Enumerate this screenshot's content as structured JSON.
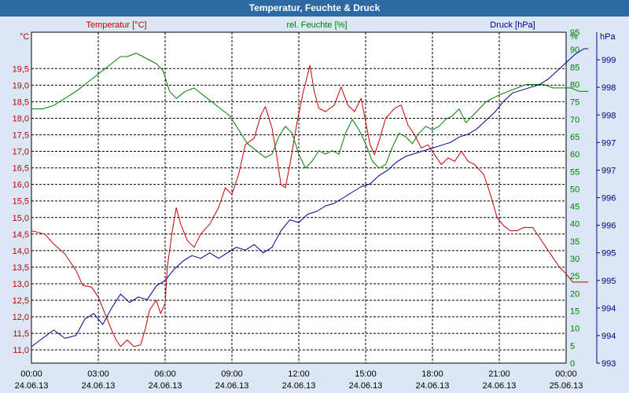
{
  "window_title": "Temperatur, Feuchte & Druck",
  "chart_data": {
    "type": "line",
    "title": "Temperatur, Feuchte & Druck",
    "x_ticks": [
      {
        "time": "00:00",
        "date": "24.06.13"
      },
      {
        "time": "03:00",
        "date": "24.06.13"
      },
      {
        "time": "06:00",
        "date": "24.06.13"
      },
      {
        "time": "09:00",
        "date": "24.06.13"
      },
      {
        "time": "12:00",
        "date": "24.06.13"
      },
      {
        "time": "15:00",
        "date": "24.06.13"
      },
      {
        "time": "18:00",
        "date": "24.06.13"
      },
      {
        "time": "21:00",
        "date": "24.06.13"
      },
      {
        "time": "00:00",
        "date": "25.06.13"
      }
    ],
    "xlim": [
      0,
      24
    ],
    "grid": true,
    "axes": {
      "temperature": {
        "label": "Temperatur [°C]",
        "unit": "°C",
        "color": "#c00000",
        "side": "left",
        "ylim": [
          10.6,
          20.6
        ],
        "ticks": [
          "11,0",
          "11,5",
          "12,0",
          "12,5",
          "13,0",
          "13,5",
          "14,0",
          "14,5",
          "15,0",
          "15,5",
          "16,0",
          "16,5",
          "17,0",
          "17,5",
          "18,0",
          "18,5",
          "19,0",
          "19,5"
        ]
      },
      "humidity": {
        "label": "rel. Feuchte [%]",
        "unit": "%",
        "color": "#008000",
        "side": "right",
        "ylim": [
          0,
          95
        ],
        "ticks": [
          "0",
          "5",
          "10",
          "15",
          "20",
          "25",
          "30",
          "35",
          "40",
          "45",
          "50",
          "55",
          "60",
          "65",
          "70",
          "75",
          "80",
          "85",
          "90",
          "95"
        ]
      },
      "pressure": {
        "label": "Druck [hPa]",
        "unit": "hPa",
        "color": "#00008b",
        "side": "right",
        "ylim": [
          993,
          999
        ],
        "ticks": [
          "993",
          "994",
          "994",
          "995",
          "995",
          "996",
          "996",
          "997",
          "997",
          "998",
          "998",
          "999"
        ]
      }
    },
    "series": [
      {
        "name": "Temperatur",
        "axis": "temperature",
        "color": "#c00000",
        "points": [
          [
            0,
            14.6
          ],
          [
            0.3,
            14.55
          ],
          [
            0.6,
            14.5
          ],
          [
            1,
            14.2
          ],
          [
            1.5,
            13.9
          ],
          [
            2,
            13.4
          ],
          [
            2.3,
            12.95
          ],
          [
            2.7,
            12.9
          ],
          [
            3,
            12.6
          ],
          [
            3.3,
            12.1
          ],
          [
            3.6,
            11.6
          ],
          [
            3.8,
            11.3
          ],
          [
            4,
            11.1
          ],
          [
            4.3,
            11.3
          ],
          [
            4.6,
            11.1
          ],
          [
            4.9,
            11.15
          ],
          [
            5.1,
            11.6
          ],
          [
            5.3,
            12.2
          ],
          [
            5.6,
            12.5
          ],
          [
            5.8,
            12.1
          ],
          [
            6.0,
            12.4
          ],
          [
            6.1,
            13.5
          ],
          [
            6.3,
            14.5
          ],
          [
            6.5,
            15.3
          ],
          [
            6.7,
            14.8
          ],
          [
            7.0,
            14.3
          ],
          [
            7.3,
            14.1
          ],
          [
            7.6,
            14.5
          ],
          [
            8.0,
            14.8
          ],
          [
            8.4,
            15.3
          ],
          [
            8.7,
            15.9
          ],
          [
            9.0,
            15.7
          ],
          [
            9.3,
            16.3
          ],
          [
            9.6,
            17.2
          ],
          [
            10.0,
            17.4
          ],
          [
            10.3,
            18.1
          ],
          [
            10.5,
            18.35
          ],
          [
            10.8,
            17.7
          ],
          [
            11.0,
            16.9
          ],
          [
            11.2,
            16.0
          ],
          [
            11.4,
            15.9
          ],
          [
            11.6,
            16.6
          ],
          [
            11.9,
            17.8
          ],
          [
            12.2,
            18.8
          ],
          [
            12.5,
            19.6
          ],
          [
            12.7,
            18.8
          ],
          [
            12.9,
            18.3
          ],
          [
            13.2,
            18.2
          ],
          [
            13.6,
            18.4
          ],
          [
            13.9,
            18.95
          ],
          [
            14.2,
            18.4
          ],
          [
            14.5,
            18.2
          ],
          [
            14.8,
            18.6
          ],
          [
            15.0,
            17.9
          ],
          [
            15.2,
            17.2
          ],
          [
            15.4,
            16.9
          ],
          [
            15.6,
            17.3
          ],
          [
            15.9,
            18.0
          ],
          [
            16.3,
            18.3
          ],
          [
            16.6,
            18.4
          ],
          [
            16.9,
            17.8
          ],
          [
            17.2,
            17.5
          ],
          [
            17.5,
            17.1
          ],
          [
            17.8,
            17.2
          ],
          [
            18.1,
            16.9
          ],
          [
            18.4,
            16.6
          ],
          [
            18.7,
            16.8
          ],
          [
            19.0,
            16.7
          ],
          [
            19.3,
            17.0
          ],
          [
            19.6,
            16.7
          ],
          [
            19.9,
            16.6
          ],
          [
            20.3,
            16.3
          ],
          [
            20.6,
            15.7
          ],
          [
            20.9,
            15.0
          ],
          [
            21.2,
            14.75
          ],
          [
            21.5,
            14.6
          ],
          [
            21.8,
            14.6
          ],
          [
            22.1,
            14.7
          ],
          [
            22.5,
            14.7
          ],
          [
            22.8,
            14.4
          ],
          [
            23.1,
            14.1
          ],
          [
            23.4,
            13.8
          ],
          [
            23.7,
            13.5
          ],
          [
            24.0,
            13.3
          ],
          [
            24.3,
            13.05
          ],
          [
            24.6,
            13.05
          ],
          [
            25.0,
            13.05
          ]
        ]
      },
      {
        "name": "rel. Feuchte",
        "axis": "humidity",
        "color": "#008000",
        "points": [
          [
            0,
            73
          ],
          [
            0.5,
            73
          ],
          [
            1,
            74
          ],
          [
            1.5,
            76
          ],
          [
            2,
            78
          ],
          [
            2.4,
            80
          ],
          [
            2.8,
            82
          ],
          [
            3.2,
            84
          ],
          [
            3.6,
            86
          ],
          [
            4.0,
            88
          ],
          [
            4.3,
            88
          ],
          [
            4.7,
            89
          ],
          [
            5.0,
            88
          ],
          [
            5.3,
            87
          ],
          [
            5.6,
            86
          ],
          [
            5.9,
            84
          ],
          [
            6.2,
            78
          ],
          [
            6.5,
            76
          ],
          [
            6.9,
            78
          ],
          [
            7.3,
            79
          ],
          [
            7.7,
            77
          ],
          [
            8.1,
            75
          ],
          [
            8.5,
            73
          ],
          [
            8.9,
            71
          ],
          [
            9.3,
            67
          ],
          [
            9.7,
            63
          ],
          [
            10.1,
            61
          ],
          [
            10.5,
            59
          ],
          [
            10.8,
            60
          ],
          [
            11.1,
            65
          ],
          [
            11.4,
            68
          ],
          [
            11.7,
            66
          ],
          [
            12.0,
            60
          ],
          [
            12.3,
            56
          ],
          [
            12.6,
            58
          ],
          [
            12.9,
            61
          ],
          [
            13.2,
            60
          ],
          [
            13.5,
            61
          ],
          [
            13.8,
            60
          ],
          [
            14.1,
            66
          ],
          [
            14.4,
            70
          ],
          [
            14.7,
            67
          ],
          [
            15.0,
            63
          ],
          [
            15.3,
            58
          ],
          [
            15.6,
            56
          ],
          [
            15.9,
            57
          ],
          [
            16.2,
            62
          ],
          [
            16.5,
            66
          ],
          [
            16.8,
            65
          ],
          [
            17.1,
            63
          ],
          [
            17.4,
            66
          ],
          [
            17.7,
            68
          ],
          [
            18.0,
            67
          ],
          [
            18.3,
            68
          ],
          [
            18.6,
            70
          ],
          [
            18.9,
            71
          ],
          [
            19.2,
            73
          ],
          [
            19.5,
            69
          ],
          [
            19.8,
            71
          ],
          [
            20.1,
            73
          ],
          [
            20.4,
            75
          ],
          [
            20.7,
            76
          ],
          [
            21.0,
            77
          ],
          [
            21.4,
            78
          ],
          [
            21.8,
            79
          ],
          [
            22.2,
            80
          ],
          [
            22.6,
            80
          ],
          [
            23.0,
            80
          ],
          [
            23.4,
            79
          ],
          [
            23.8,
            79
          ],
          [
            24.2,
            79
          ],
          [
            24.6,
            78
          ],
          [
            25.0,
            78
          ]
        ]
      },
      {
        "name": "Druck",
        "axis": "pressure",
        "color": "#00008b",
        "points": [
          [
            0,
            993.3
          ],
          [
            0.5,
            993.45
          ],
          [
            1,
            993.6
          ],
          [
            1.5,
            993.45
          ],
          [
            2,
            993.5
          ],
          [
            2.4,
            993.8
          ],
          [
            2.8,
            993.9
          ],
          [
            3.2,
            993.7
          ],
          [
            3.6,
            994.0
          ],
          [
            4.0,
            994.25
          ],
          [
            4.4,
            994.1
          ],
          [
            4.8,
            994.2
          ],
          [
            5.2,
            994.15
          ],
          [
            5.6,
            994.4
          ],
          [
            6.0,
            994.5
          ],
          [
            6.4,
            994.7
          ],
          [
            6.8,
            994.85
          ],
          [
            7.2,
            994.95
          ],
          [
            7.6,
            994.9
          ],
          [
            8.0,
            995.0
          ],
          [
            8.4,
            994.9
          ],
          [
            8.8,
            995.0
          ],
          [
            9.2,
            995.1
          ],
          [
            9.6,
            995.05
          ],
          [
            10.0,
            995.15
          ],
          [
            10.4,
            995.0
          ],
          [
            10.8,
            995.1
          ],
          [
            11.2,
            995.4
          ],
          [
            11.6,
            995.6
          ],
          [
            12.0,
            995.55
          ],
          [
            12.4,
            995.7
          ],
          [
            12.8,
            995.75
          ],
          [
            13.2,
            995.85
          ],
          [
            13.6,
            995.9
          ],
          [
            14.0,
            996.0
          ],
          [
            14.4,
            996.1
          ],
          [
            14.8,
            996.2
          ],
          [
            15.2,
            996.25
          ],
          [
            15.6,
            996.4
          ],
          [
            16.0,
            996.5
          ],
          [
            16.4,
            996.65
          ],
          [
            16.8,
            996.75
          ],
          [
            17.2,
            996.8
          ],
          [
            17.6,
            996.85
          ],
          [
            18.0,
            996.9
          ],
          [
            18.4,
            996.95
          ],
          [
            18.8,
            997.0
          ],
          [
            19.2,
            997.1
          ],
          [
            19.6,
            997.15
          ],
          [
            20.0,
            997.25
          ],
          [
            20.4,
            997.4
          ],
          [
            20.8,
            997.55
          ],
          [
            21.2,
            997.75
          ],
          [
            21.6,
            997.9
          ],
          [
            22.0,
            997.95
          ],
          [
            22.4,
            998.0
          ],
          [
            22.8,
            998.05
          ],
          [
            23.2,
            998.15
          ],
          [
            23.6,
            998.3
          ],
          [
            24.0,
            998.45
          ],
          [
            24.4,
            998.6
          ],
          [
            24.8,
            998.7
          ],
          [
            25.0,
            998.7
          ]
        ]
      }
    ]
  }
}
